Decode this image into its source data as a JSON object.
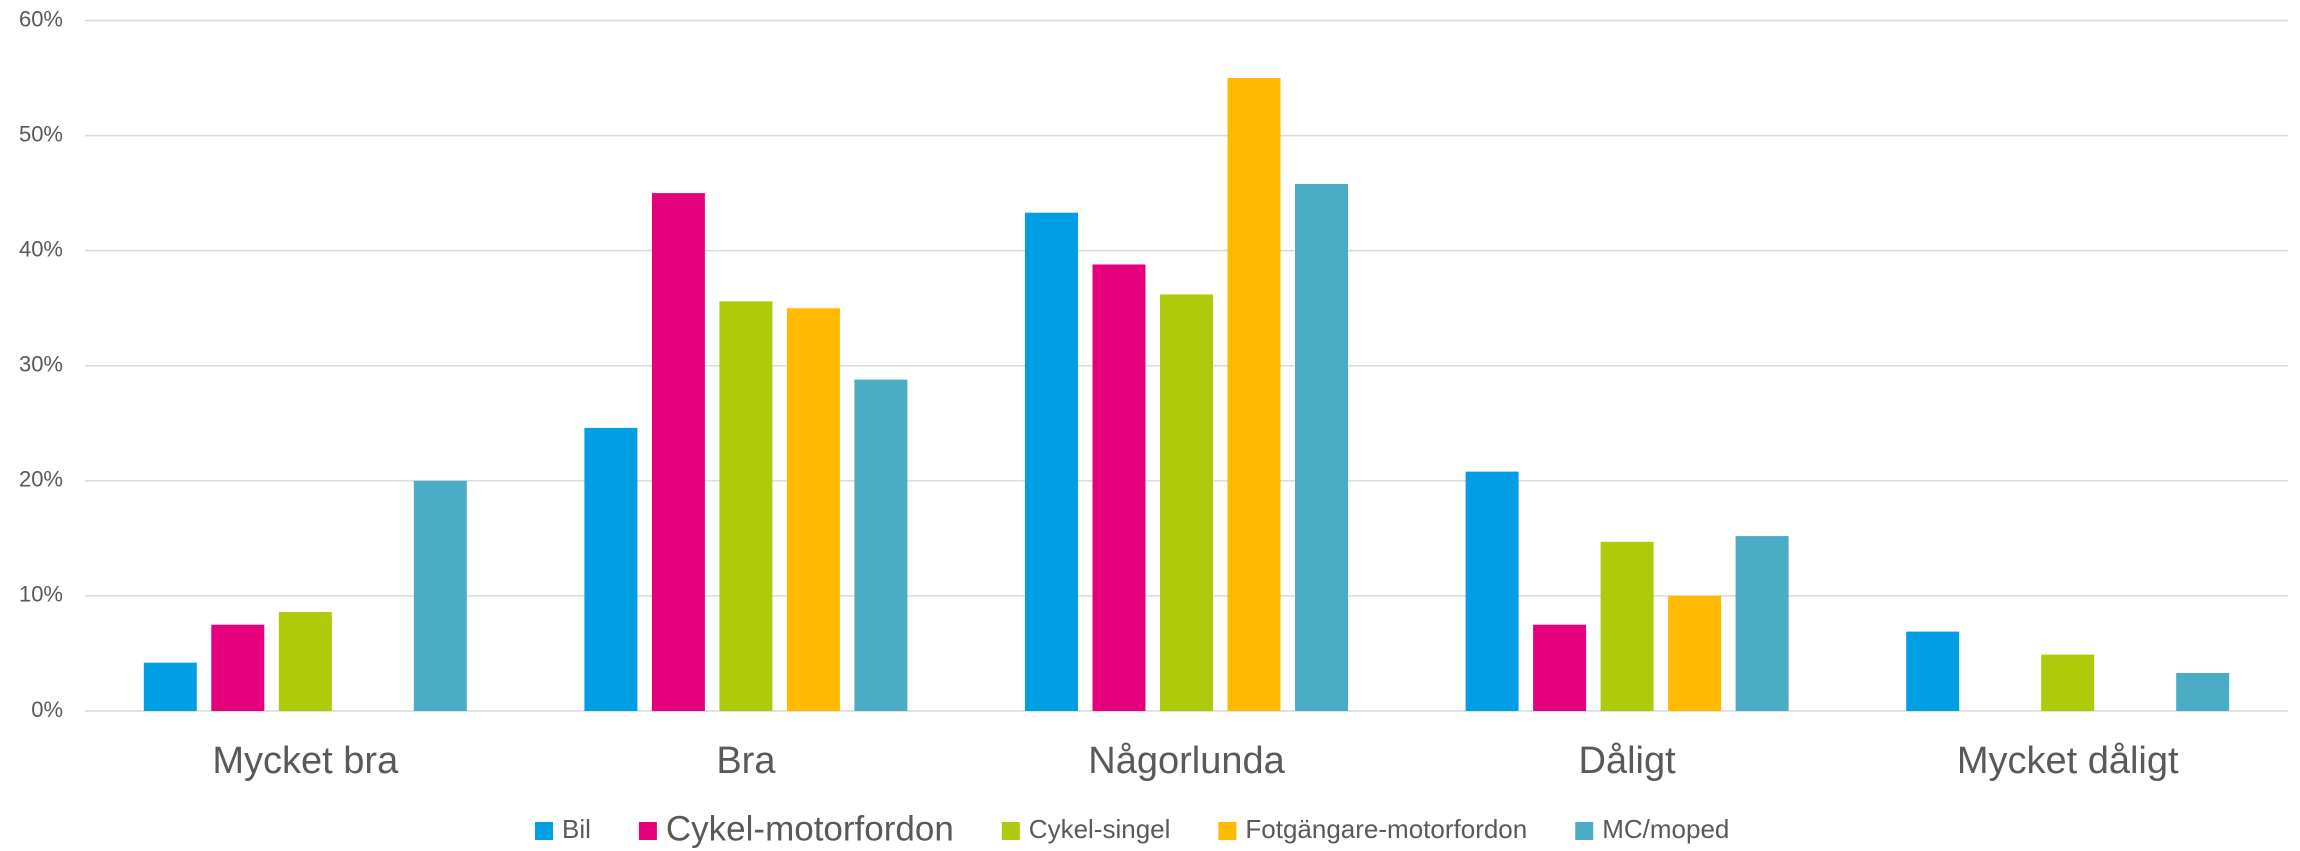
{
  "chart_data": {
    "type": "bar",
    "categories": [
      "Mycket bra",
      "Bra",
      "Någorlunda",
      "Dåligt",
      "Mycket dåligt"
    ],
    "series": [
      {
        "name": "Bil",
        "color": "#009fe3",
        "values": [
          4.2,
          24.6,
          43.3,
          20.8,
          6.9
        ]
      },
      {
        "name": "Cykel-motorfordon",
        "color": "#e6007e",
        "values": [
          7.5,
          45,
          38.8,
          7.5,
          0
        ]
      },
      {
        "name": "Cykel-singel",
        "color": "#afca0b",
        "values": [
          8.6,
          35.6,
          36.2,
          14.7,
          4.9
        ]
      },
      {
        "name": "Fotgängare-motorfordon",
        "color": "#ffb900",
        "values": [
          0,
          35,
          55,
          10,
          0
        ]
      },
      {
        "name": "MC/moped",
        "color": "#4bacc6",
        "values": [
          20,
          28.8,
          45.8,
          15.2,
          3.3
        ]
      }
    ],
    "ylim": [
      0,
      60
    ],
    "yticks": [
      {
        "value": 0,
        "label": "0%"
      },
      {
        "value": 10,
        "label": "10%"
      },
      {
        "value": 20,
        "label": "20%"
      },
      {
        "value": 30,
        "label": "30%"
      },
      {
        "value": 40,
        "label": "40%"
      },
      {
        "value": 50,
        "label": "50%"
      },
      {
        "value": 60,
        "label": "60%"
      }
    ],
    "grid": true,
    "legend": "bottom"
  }
}
